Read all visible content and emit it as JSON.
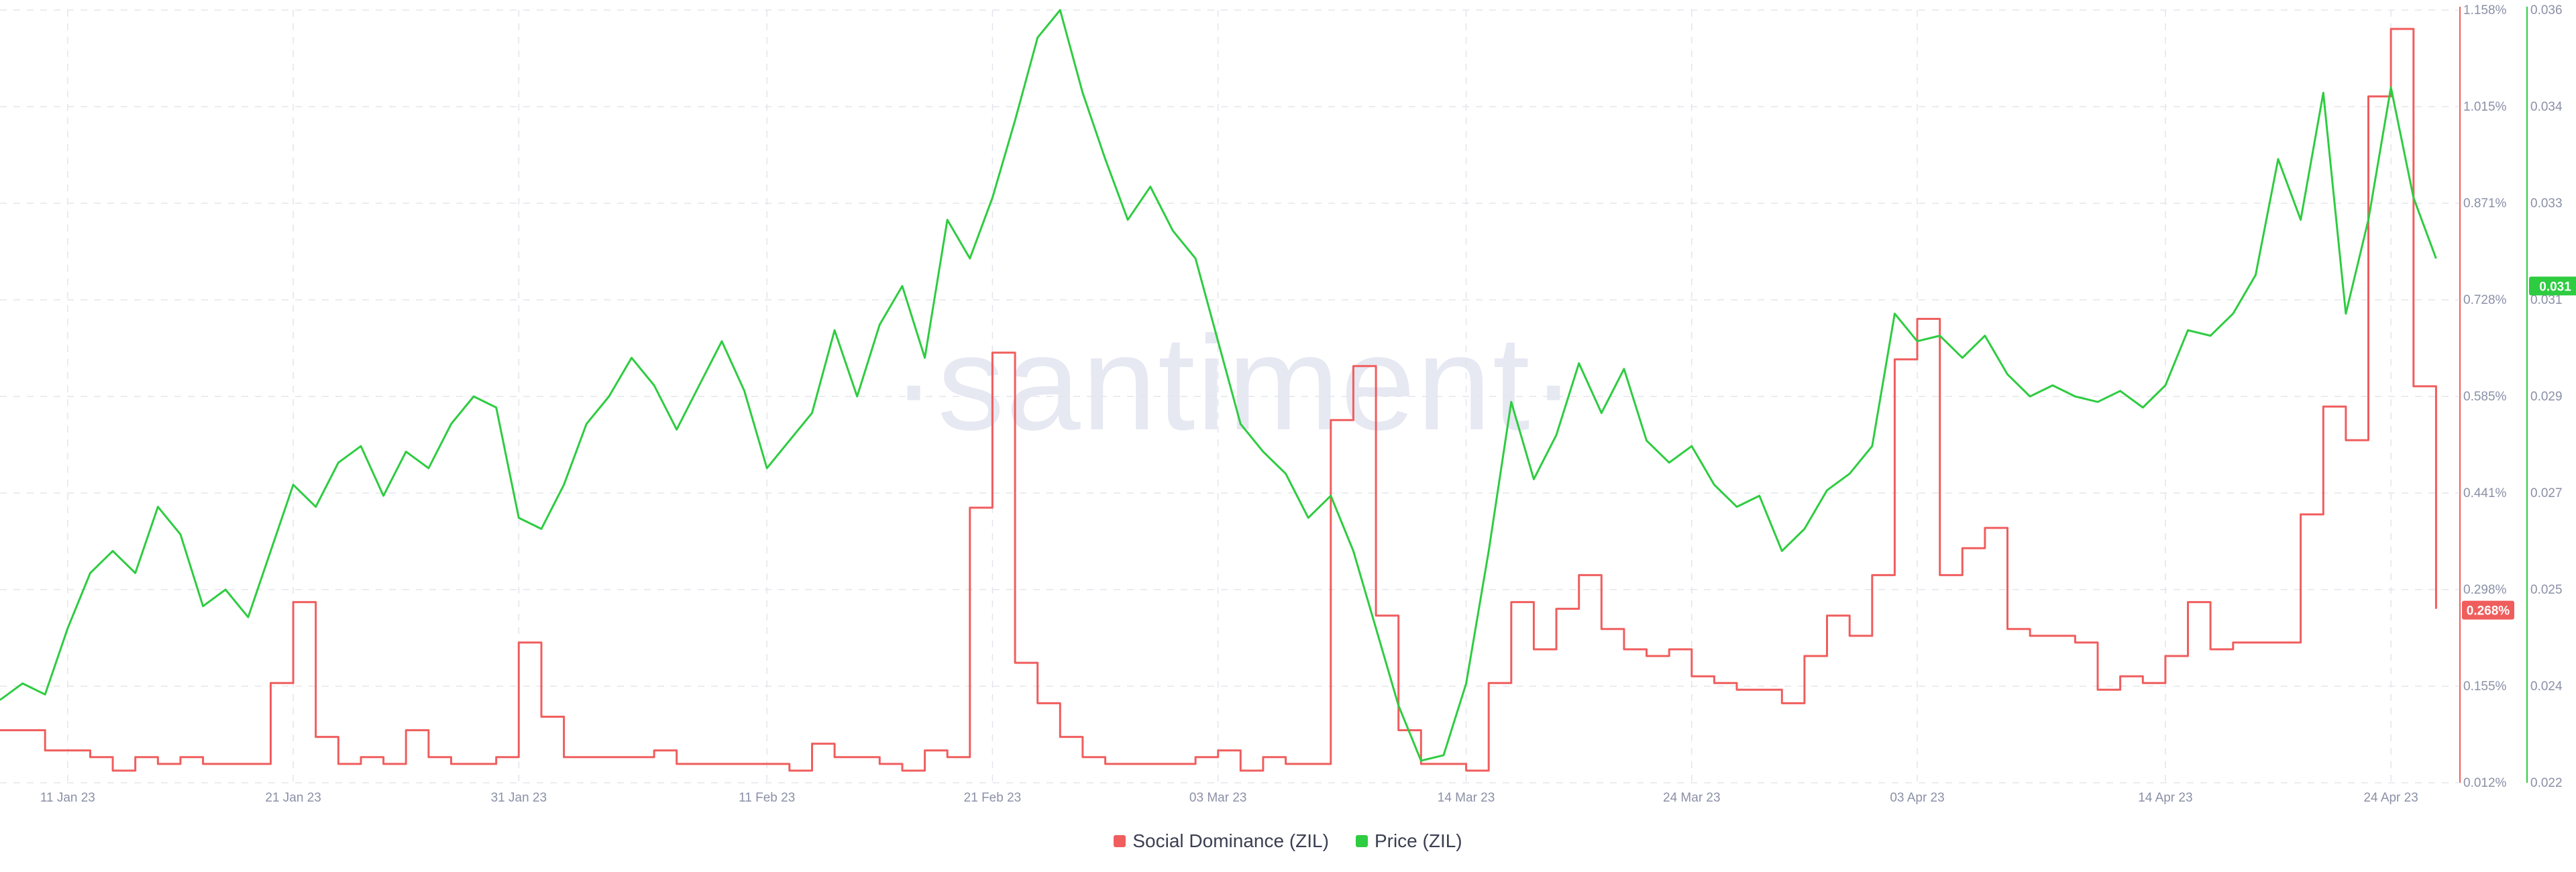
{
  "watermark": "·santiment·",
  "colors": {
    "social": "#f05d5d",
    "price": "#2ecc40",
    "grid": "#e3e5ec",
    "axis_text": "#8a90a6"
  },
  "legend": [
    {
      "label": "Social Dominance (ZIL)",
      "color": "#f05d5d"
    },
    {
      "label": "Price (ZIL)",
      "color": "#2ecc40"
    }
  ],
  "chart_data": {
    "type": "line",
    "title": "",
    "x_ticks": [
      "11 Jan 23",
      "21 Jan 23",
      "31 Jan 23",
      "11 Feb 23",
      "21 Feb 23",
      "03 Mar 23",
      "14 Mar 23",
      "24 Mar 23",
      "03 Apr 23",
      "14 Apr 23",
      "24 Apr 23"
    ],
    "left_axis": {
      "label": "Social Dominance (ZIL)",
      "ticks": [
        "1.158%",
        "1.015%",
        "0.871%",
        "0.728%",
        "0.585%",
        "0.441%",
        "0.298%",
        "0.155%",
        "0.012%"
      ],
      "range": [
        0.012,
        1.158
      ],
      "current_value": "0.268%"
    },
    "right_axis": {
      "label": "Price (ZIL)",
      "ticks": [
        "0.036",
        "0.034",
        "0.033",
        "0.031",
        "0.029",
        "0.027",
        "0.025",
        "0.024",
        "0.022"
      ],
      "range": [
        0.022,
        0.036
      ],
      "current_value": "0.031"
    },
    "series": [
      {
        "name": "Social Dominance (ZIL)",
        "axis": "left",
        "unit": "%",
        "points": [
          [
            "2023-01-08",
            0.09
          ],
          [
            "2023-01-10",
            0.06
          ],
          [
            "2023-01-12",
            0.05
          ],
          [
            "2023-01-13",
            0.03
          ],
          [
            "2023-01-14",
            0.05
          ],
          [
            "2023-01-15",
            0.04
          ],
          [
            "2023-01-16",
            0.05
          ],
          [
            "2023-01-17",
            0.04
          ],
          [
            "2023-01-19",
            0.04
          ],
          [
            "2023-01-20",
            0.16
          ],
          [
            "2023-01-21",
            0.28
          ],
          [
            "2023-01-22",
            0.08
          ],
          [
            "2023-01-23",
            0.04
          ],
          [
            "2023-01-24",
            0.05
          ],
          [
            "2023-01-25",
            0.04
          ],
          [
            "2023-01-26",
            0.09
          ],
          [
            "2023-01-27",
            0.05
          ],
          [
            "2023-01-28",
            0.04
          ],
          [
            "2023-01-29",
            0.04
          ],
          [
            "2023-01-30",
            0.05
          ],
          [
            "2023-01-31",
            0.22
          ],
          [
            "2023-02-01",
            0.11
          ],
          [
            "2023-02-02",
            0.05
          ],
          [
            "2023-02-03",
            0.05
          ],
          [
            "2023-02-05",
            0.05
          ],
          [
            "2023-02-06",
            0.06
          ],
          [
            "2023-02-07",
            0.04
          ],
          [
            "2023-02-08",
            0.04
          ],
          [
            "2023-02-10",
            0.04
          ],
          [
            "2023-02-11",
            0.04
          ],
          [
            "2023-02-12",
            0.03
          ],
          [
            "2023-02-13",
            0.07
          ],
          [
            "2023-02-14",
            0.05
          ],
          [
            "2023-02-15",
            0.05
          ],
          [
            "2023-02-16",
            0.04
          ],
          [
            "2023-02-17",
            0.03
          ],
          [
            "2023-02-18",
            0.06
          ],
          [
            "2023-02-19",
            0.05
          ],
          [
            "2023-02-20",
            0.42
          ],
          [
            "2023-02-21",
            0.65
          ],
          [
            "2023-02-22",
            0.19
          ],
          [
            "2023-02-23",
            0.13
          ],
          [
            "2023-02-24",
            0.08
          ],
          [
            "2023-02-25",
            0.05
          ],
          [
            "2023-02-26",
            0.04
          ],
          [
            "2023-02-27",
            0.04
          ],
          [
            "2023-02-28",
            0.04
          ],
          [
            "2023-03-01",
            0.04
          ],
          [
            "2023-03-02",
            0.05
          ],
          [
            "2023-03-03",
            0.06
          ],
          [
            "2023-03-04",
            0.03
          ],
          [
            "2023-03-05",
            0.05
          ],
          [
            "2023-03-06",
            0.04
          ],
          [
            "2023-03-07",
            0.04
          ],
          [
            "2023-03-08",
            0.55
          ],
          [
            "2023-03-09",
            0.63
          ],
          [
            "2023-03-10",
            0.26
          ],
          [
            "2023-03-11",
            0.09
          ],
          [
            "2023-03-12",
            0.04
          ],
          [
            "2023-03-13",
            0.04
          ],
          [
            "2023-03-14",
            0.03
          ],
          [
            "2023-03-15",
            0.16
          ],
          [
            "2023-03-16",
            0.28
          ],
          [
            "2023-03-17",
            0.21
          ],
          [
            "2023-03-18",
            0.27
          ],
          [
            "2023-03-19",
            0.32
          ],
          [
            "2023-03-20",
            0.24
          ],
          [
            "2023-03-21",
            0.21
          ],
          [
            "2023-03-22",
            0.2
          ],
          [
            "2023-03-23",
            0.21
          ],
          [
            "2023-03-24",
            0.17
          ],
          [
            "2023-03-25",
            0.16
          ],
          [
            "2023-03-26",
            0.15
          ],
          [
            "2023-03-27",
            0.15
          ],
          [
            "2023-03-28",
            0.13
          ],
          [
            "2023-03-29",
            0.2
          ],
          [
            "2023-03-30",
            0.26
          ],
          [
            "2023-03-31",
            0.23
          ],
          [
            "2023-04-01",
            0.32
          ],
          [
            "2023-04-02",
            0.64
          ],
          [
            "2023-04-03",
            0.7
          ],
          [
            "2023-04-04",
            0.32
          ],
          [
            "2023-04-05",
            0.36
          ],
          [
            "2023-04-06",
            0.39
          ],
          [
            "2023-04-07",
            0.24
          ],
          [
            "2023-04-08",
            0.23
          ],
          [
            "2023-04-09",
            0.23
          ],
          [
            "2023-04-10",
            0.22
          ],
          [
            "2023-04-11",
            0.15
          ],
          [
            "2023-04-12",
            0.17
          ],
          [
            "2023-04-13",
            0.16
          ],
          [
            "2023-04-14",
            0.2
          ],
          [
            "2023-04-15",
            0.28
          ],
          [
            "2023-04-16",
            0.21
          ],
          [
            "2023-04-17",
            0.22
          ],
          [
            "2023-04-19",
            0.22
          ],
          [
            "2023-04-20",
            0.41
          ],
          [
            "2023-04-21",
            0.57
          ],
          [
            "2023-04-22",
            0.52
          ],
          [
            "2023-04-23",
            1.03
          ],
          [
            "2023-04-24",
            1.13
          ],
          [
            "2023-04-25",
            0.6
          ],
          [
            "2023-04-26",
            0.27
          ]
        ]
      },
      {
        "name": "Price (ZIL)",
        "axis": "right",
        "unit": "USD",
        "points": [
          [
            "2023-01-08",
            0.0235
          ],
          [
            "2023-01-09",
            0.0238
          ],
          [
            "2023-01-10",
            0.0236
          ],
          [
            "2023-01-11",
            0.0248
          ],
          [
            "2023-01-12",
            0.0258
          ],
          [
            "2023-01-13",
            0.0262
          ],
          [
            "2023-01-14",
            0.0258
          ],
          [
            "2023-01-15",
            0.027
          ],
          [
            "2023-01-16",
            0.0265
          ],
          [
            "2023-01-17",
            0.0252
          ],
          [
            "2023-01-18",
            0.0255
          ],
          [
            "2023-01-19",
            0.025
          ],
          [
            "2023-01-20",
            0.0262
          ],
          [
            "2023-01-21",
            0.0274
          ],
          [
            "2023-01-22",
            0.027
          ],
          [
            "2023-01-23",
            0.0278
          ],
          [
            "2023-01-24",
            0.0281
          ],
          [
            "2023-01-25",
            0.0272
          ],
          [
            "2023-01-26",
            0.028
          ],
          [
            "2023-01-27",
            0.0277
          ],
          [
            "2023-01-28",
            0.0285
          ],
          [
            "2023-01-29",
            0.029
          ],
          [
            "2023-01-30",
            0.0288
          ],
          [
            "2023-01-31",
            0.0268
          ],
          [
            "2023-02-01",
            0.0266
          ],
          [
            "2023-02-02",
            0.0274
          ],
          [
            "2023-02-03",
            0.0285
          ],
          [
            "2023-02-04",
            0.029
          ],
          [
            "2023-02-05",
            0.0297
          ],
          [
            "2023-02-06",
            0.0292
          ],
          [
            "2023-02-07",
            0.0284
          ],
          [
            "2023-02-08",
            0.0292
          ],
          [
            "2023-02-09",
            0.03
          ],
          [
            "2023-02-10",
            0.0291
          ],
          [
            "2023-02-11",
            0.0277
          ],
          [
            "2023-02-12",
            0.0282
          ],
          [
            "2023-02-13",
            0.0287
          ],
          [
            "2023-02-14",
            0.0302
          ],
          [
            "2023-02-15",
            0.029
          ],
          [
            "2023-02-16",
            0.0303
          ],
          [
            "2023-02-17",
            0.031
          ],
          [
            "2023-02-18",
            0.0297
          ],
          [
            "2023-02-19",
            0.0322
          ],
          [
            "2023-02-20",
            0.0315
          ],
          [
            "2023-02-21",
            0.0326
          ],
          [
            "2023-02-22",
            0.034
          ],
          [
            "2023-02-23",
            0.0355
          ],
          [
            "2023-02-24",
            0.036
          ],
          [
            "2023-02-25",
            0.0345
          ],
          [
            "2023-02-26",
            0.0333
          ],
          [
            "2023-02-27",
            0.0322
          ],
          [
            "2023-02-28",
            0.0328
          ],
          [
            "2023-03-01",
            0.032
          ],
          [
            "2023-03-02",
            0.0315
          ],
          [
            "2023-03-03",
            0.03
          ],
          [
            "2023-03-04",
            0.0285
          ],
          [
            "2023-03-05",
            0.028
          ],
          [
            "2023-03-06",
            0.0276
          ],
          [
            "2023-03-07",
            0.0268
          ],
          [
            "2023-03-08",
            0.0272
          ],
          [
            "2023-03-09",
            0.0262
          ],
          [
            "2023-03-10",
            0.0248
          ],
          [
            "2023-03-11",
            0.0234
          ],
          [
            "2023-03-12",
            0.0224
          ],
          [
            "2023-03-13",
            0.0225
          ],
          [
            "2023-03-14",
            0.0238
          ],
          [
            "2023-03-15",
            0.0262
          ],
          [
            "2023-03-16",
            0.0289
          ],
          [
            "2023-03-17",
            0.0275
          ],
          [
            "2023-03-18",
            0.0283
          ],
          [
            "2023-03-19",
            0.0296
          ],
          [
            "2023-03-20",
            0.0287
          ],
          [
            "2023-03-21",
            0.0295
          ],
          [
            "2023-03-22",
            0.0282
          ],
          [
            "2023-03-23",
            0.0278
          ],
          [
            "2023-03-24",
            0.0281
          ],
          [
            "2023-03-25",
            0.0274
          ],
          [
            "2023-03-26",
            0.027
          ],
          [
            "2023-03-27",
            0.0272
          ],
          [
            "2023-03-28",
            0.0262
          ],
          [
            "2023-03-29",
            0.0266
          ],
          [
            "2023-03-30",
            0.0273
          ],
          [
            "2023-03-31",
            0.0276
          ],
          [
            "2023-04-01",
            0.0281
          ],
          [
            "2023-04-02",
            0.0305
          ],
          [
            "2023-04-03",
            0.03
          ],
          [
            "2023-04-04",
            0.0301
          ],
          [
            "2023-04-05",
            0.0297
          ],
          [
            "2023-04-06",
            0.0301
          ],
          [
            "2023-04-07",
            0.0294
          ],
          [
            "2023-04-08",
            0.029
          ],
          [
            "2023-04-09",
            0.0292
          ],
          [
            "2023-04-10",
            0.029
          ],
          [
            "2023-04-11",
            0.0289
          ],
          [
            "2023-04-12",
            0.0291
          ],
          [
            "2023-04-13",
            0.0288
          ],
          [
            "2023-04-14",
            0.0292
          ],
          [
            "2023-04-15",
            0.0302
          ],
          [
            "2023-04-16",
            0.0301
          ],
          [
            "2023-04-17",
            0.0305
          ],
          [
            "2023-04-18",
            0.0312
          ],
          [
            "2023-04-19",
            0.0333
          ],
          [
            "2023-04-20",
            0.0322
          ],
          [
            "2023-04-21",
            0.0345
          ],
          [
            "2023-04-22",
            0.0305
          ],
          [
            "2023-04-23",
            0.0322
          ],
          [
            "2023-04-24",
            0.0346
          ],
          [
            "2023-04-25",
            0.0326
          ],
          [
            "2023-04-26",
            0.0315
          ]
        ]
      }
    ],
    "grid": true,
    "legend_position": "bottom-center"
  }
}
